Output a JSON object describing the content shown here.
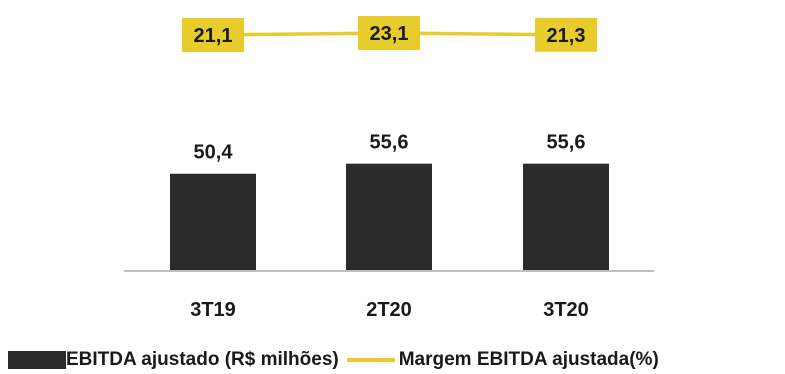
{
  "chart_data": {
    "type": "bar",
    "categories": [
      "3T19",
      "2T20",
      "3T20"
    ],
    "series": [
      {
        "name": "EBITDA ajustado (R$ milhões)",
        "type": "bar",
        "values": [
          50.4,
          55.6,
          55.6
        ],
        "labels": [
          "50,4",
          "55,6",
          "55,6"
        ],
        "color": "#2b2b2b"
      },
      {
        "name": "Margem EBITDA ajustada(%)",
        "type": "line",
        "values": [
          21.1,
          23.1,
          21.3
        ],
        "labels": [
          "21,1",
          "23,1",
          "21,3"
        ],
        "color": "#e8cc2c"
      }
    ],
    "grid": false,
    "legend": "bottom"
  }
}
